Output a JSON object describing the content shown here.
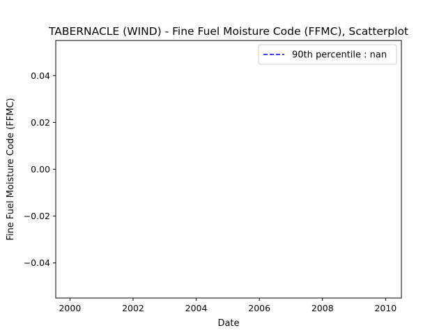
{
  "chart_data": {
    "type": "scatter",
    "title": "TABERNACLE  (WIND) - Fine Fuel Moisture Code (FFMC), Scatterplot",
    "xlabel": "Date",
    "ylabel": "Fine Fuel Moisture Code (FFMC)",
    "xlim": [
      1999.55,
      2010.5
    ],
    "ylim": [
      -0.055,
      0.055
    ],
    "x_ticks": [
      2000,
      2002,
      2004,
      2006,
      2008,
      2010
    ],
    "x_tick_labels": [
      "2000",
      "2002",
      "2004",
      "2006",
      "2008",
      "2010"
    ],
    "y_ticks": [
      0.04,
      0.02,
      0.0,
      -0.02,
      -0.04
    ],
    "y_tick_labels": [
      "0.04",
      "0.02",
      "0.00",
      "−0.02",
      "−0.04"
    ],
    "series": [
      {
        "name": "90th percentile : nan",
        "style": "dashed-line",
        "color": "#0000ff",
        "values": []
      }
    ],
    "points": [],
    "grid": false,
    "legend": {
      "position": "top-right",
      "entries": [
        "90th percentile : nan"
      ]
    }
  }
}
